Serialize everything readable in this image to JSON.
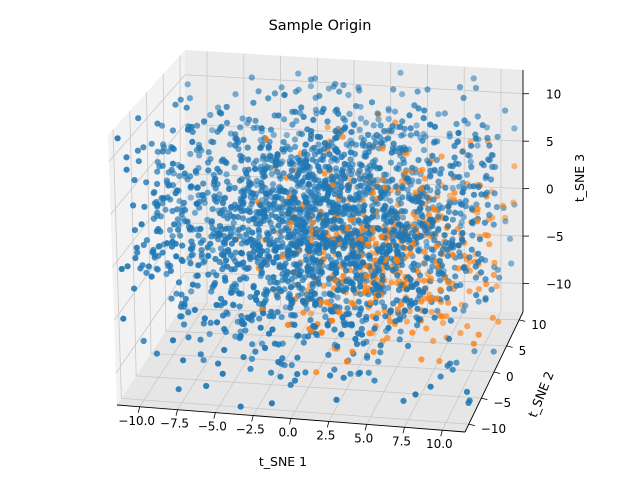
{
  "chart_data": {
    "type": "scatter",
    "projection": "3d",
    "title": "Sample Origin",
    "xlabel": "t_SNE 1",
    "ylabel": "t_SNE 2",
    "zlabel": "t_SNE 3",
    "xticks": [
      "−10.0",
      "−7.5",
      "−5.0",
      "−2.5",
      "0.0",
      "2.5",
      "5.0",
      "7.5",
      "10.0"
    ],
    "yticks": [
      "−10",
      "−5",
      "0",
      "5",
      "10"
    ],
    "zticks": [
      "−10",
      "−5",
      "0",
      "5",
      "10"
    ],
    "xlim": [
      -11.5,
      11.5
    ],
    "ylim": [
      -11.5,
      11.5
    ],
    "zlim": [
      -13,
      12.5
    ],
    "grid": true,
    "legend": "none",
    "series": [
      {
        "color": "#1f77b4",
        "approx_points": 2200,
        "note_spread": "broad"
      },
      {
        "color": "#ff7f0e",
        "approx_points": 420,
        "note_spread": "concentrated-positive-x"
      }
    ]
  }
}
